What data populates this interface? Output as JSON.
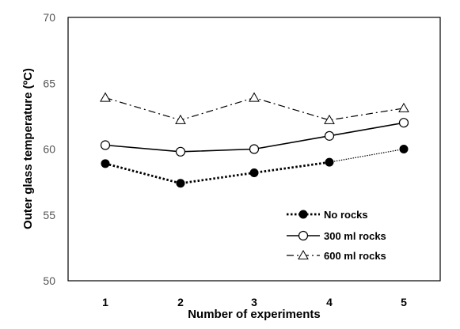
{
  "chart_data": {
    "type": "line",
    "xlabel": "Number of experiments",
    "ylabel": "Outer glass  temperature (ºC)",
    "categories": [
      "1",
      "2",
      "3",
      "4",
      "5"
    ],
    "ylim": [
      50,
      70
    ],
    "yticks": [
      50,
      55,
      60,
      65,
      70
    ],
    "grid": false,
    "legend_position": "bottom-right",
    "series": [
      {
        "name": "No rocks",
        "values": [
          58.9,
          57.4,
          58.2,
          59.0,
          60.0
        ],
        "style": "dotted",
        "marker": "filled-circle",
        "color": "#000000"
      },
      {
        "name": "300 ml rocks",
        "values": [
          60.3,
          59.8,
          60.0,
          61.0,
          62.0
        ],
        "style": "solid",
        "marker": "open-circle",
        "color": "#000000"
      },
      {
        "name": "600 ml rocks",
        "values": [
          63.9,
          62.2,
          63.9,
          62.2,
          63.1
        ],
        "style": "dash-dot",
        "marker": "open-triangle",
        "color": "#000000"
      }
    ]
  }
}
